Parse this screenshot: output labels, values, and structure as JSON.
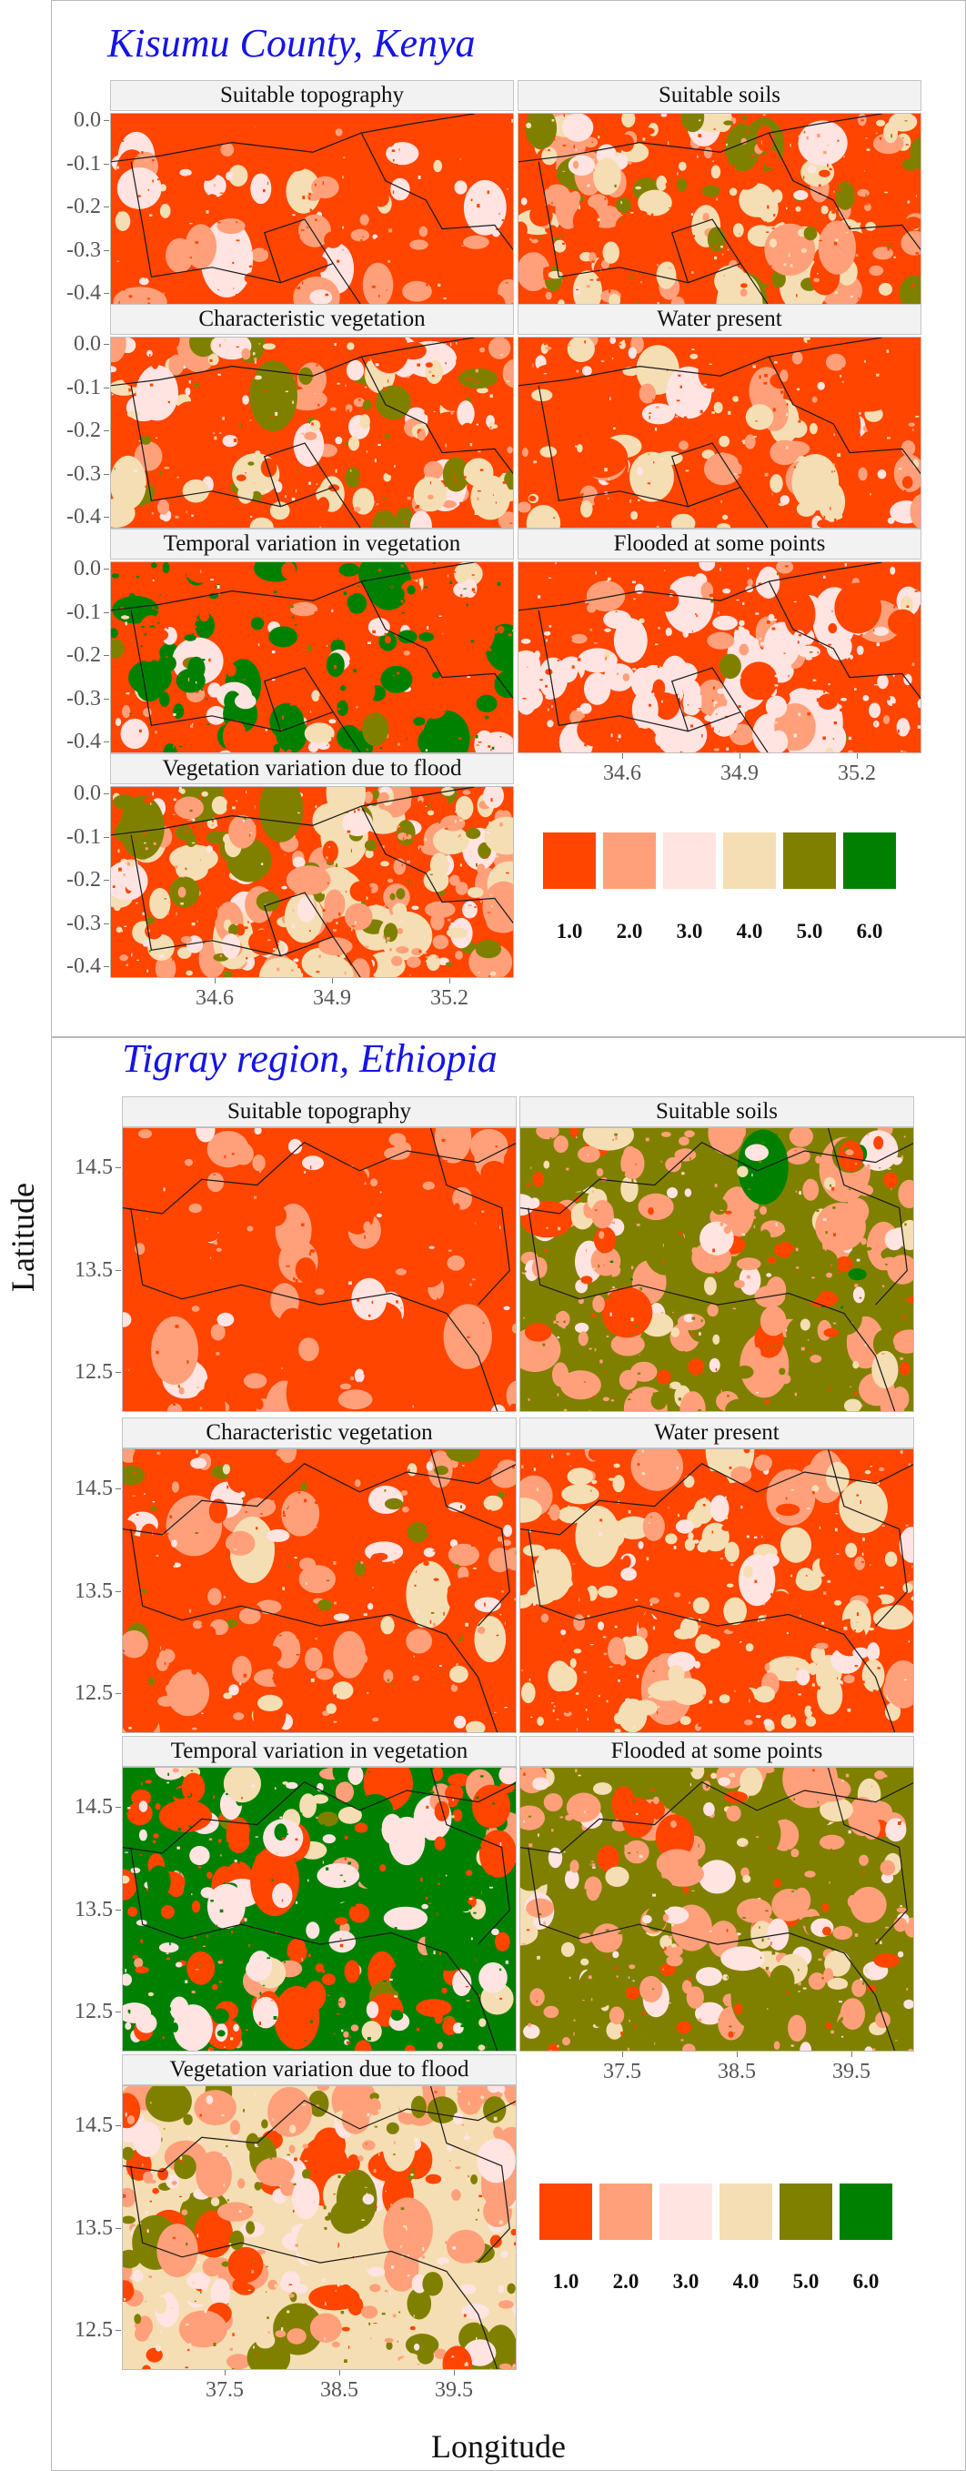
{
  "axis_labels": {
    "y": "Latitude",
    "x": "Longitude"
  },
  "legend": {
    "items": [
      {
        "label": "1.0",
        "color": "#ff4500"
      },
      {
        "label": "2.0",
        "color": "#ffa07a"
      },
      {
        "label": "3.0",
        "color": "#ffe4e1"
      },
      {
        "label": "4.0",
        "color": "#f5deb3"
      },
      {
        "label": "5.0",
        "color": "#808000"
      },
      {
        "label": "6.0",
        "color": "#008000"
      }
    ]
  },
  "regions": [
    {
      "key": "kenya",
      "title": "Kisumu County, Kenya",
      "y_ticks": [
        "0.0",
        "-0.1",
        "-0.2",
        "-0.3",
        "-0.4"
      ],
      "x_ticks": [
        "34.6",
        "34.9",
        "35.2"
      ],
      "panels": [
        {
          "label": "Suitable topography",
          "mix": [
            0.88,
            0.06,
            0.05,
            0.01,
            0,
            0
          ]
        },
        {
          "label": "Suitable soils",
          "mix": [
            0.55,
            0.15,
            0.04,
            0.18,
            0.08,
            0
          ]
        },
        {
          "label": "Characteristic vegetation",
          "mix": [
            0.62,
            0.1,
            0.1,
            0.12,
            0.06,
            0
          ]
        },
        {
          "label": "Water present",
          "mix": [
            0.72,
            0.08,
            0.06,
            0.14,
            0,
            0
          ]
        },
        {
          "label": "Temporal variation in vegetation",
          "mix": [
            0.68,
            0.03,
            0.08,
            0.02,
            0.02,
            0.17
          ]
        },
        {
          "label": "Flooded at some points",
          "mix": [
            0.58,
            0.06,
            0.34,
            0.01,
            0.01,
            0
          ]
        },
        {
          "label": "Vegetation variation due to flood",
          "mix": [
            0.3,
            0.22,
            0.1,
            0.24,
            0.14,
            0
          ]
        }
      ]
    },
    {
      "key": "ethiopia",
      "title": "Tigray region, Ethiopia",
      "y_ticks": [
        "14.5",
        "13.5",
        "12.5"
      ],
      "x_ticks": [
        "37.5",
        "38.5",
        "39.5"
      ],
      "panels": [
        {
          "label": "Suitable topography",
          "mix": [
            0.82,
            0.14,
            0.04,
            0,
            0,
            0
          ]
        },
        {
          "label": "Suitable soils",
          "mix": [
            0.12,
            0.32,
            0.05,
            0.06,
            0.44,
            0.01
          ]
        },
        {
          "label": "Characteristic vegetation",
          "mix": [
            0.66,
            0.16,
            0.04,
            0.06,
            0.08,
            0
          ]
        },
        {
          "label": "Water present",
          "mix": [
            0.46,
            0.1,
            0.1,
            0.34,
            0,
            0
          ]
        },
        {
          "label": "Temporal variation in vegetation",
          "mix": [
            0.26,
            0.06,
            0.14,
            0.04,
            0.02,
            0.48
          ]
        },
        {
          "label": "Flooded at some points",
          "mix": [
            0.12,
            0.24,
            0.12,
            0.1,
            0.42,
            0
          ]
        },
        {
          "label": "Vegetation variation due to flood",
          "mix": [
            0.14,
            0.22,
            0.18,
            0.3,
            0.16,
            0
          ]
        }
      ]
    }
  ]
}
